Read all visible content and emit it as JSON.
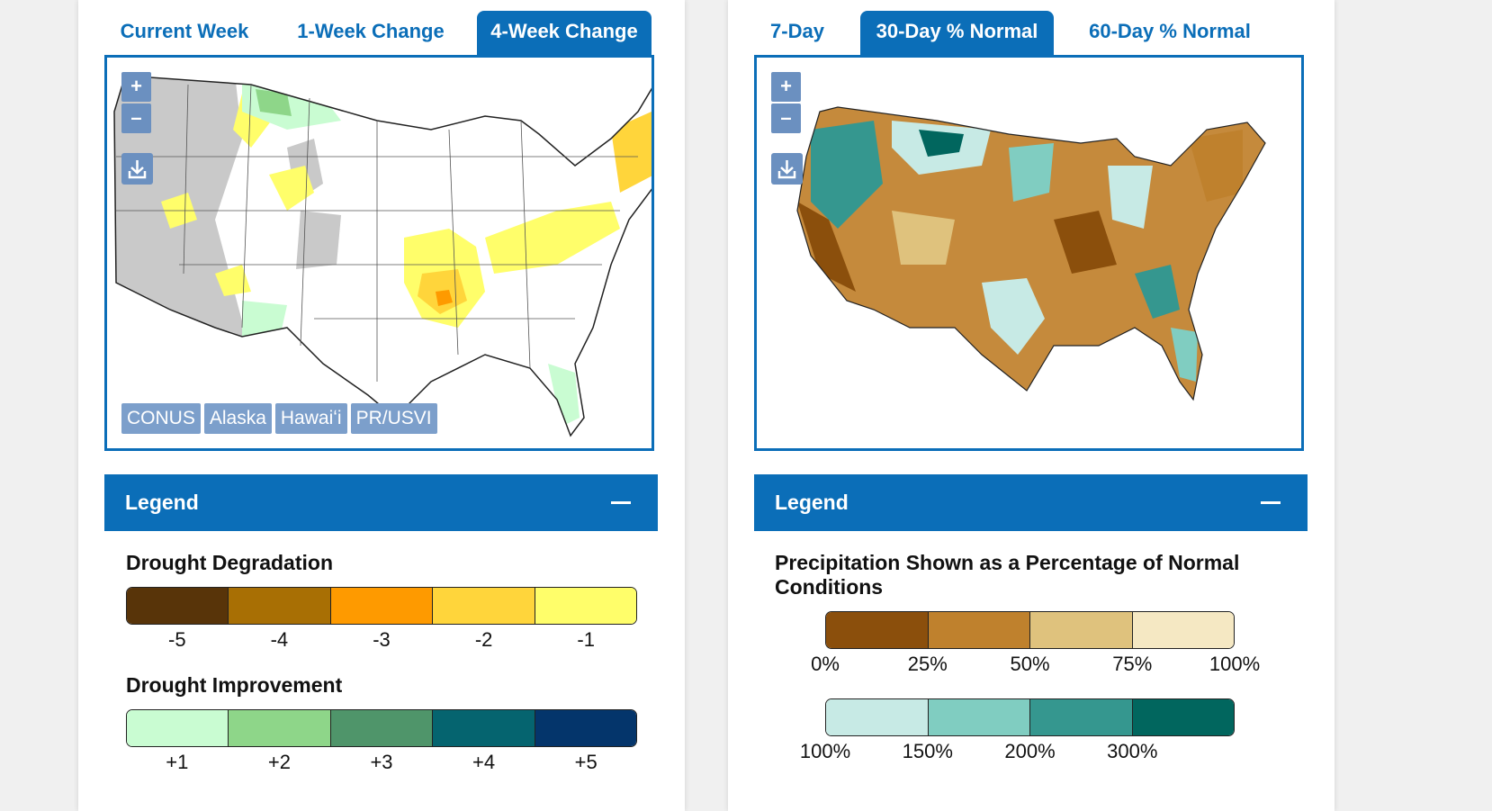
{
  "left_panel": {
    "tabs": [
      {
        "label": "Current Week",
        "active": false
      },
      {
        "label": "1-Week Change",
        "active": false
      },
      {
        "label": "4-Week Change",
        "active": true
      }
    ],
    "zoom_in": "+",
    "zoom_out": "–",
    "regions": [
      "CONUS",
      "Alaska",
      "Hawaiʻi",
      "PR/USVI"
    ],
    "legend": {
      "title": "Legend",
      "degradation": {
        "heading": "Drought Degradation",
        "colors": [
          "#583409",
          "#a86f04",
          "#fe9a00",
          "#ffd53b",
          "#fffe6a"
        ],
        "labels": [
          "-5",
          "-4",
          "-3",
          "-2",
          "-1"
        ]
      },
      "improvement": {
        "heading": "Drought Improvement",
        "colors": [
          "#c9fcd2",
          "#8ed689",
          "#4f956a",
          "#05646f",
          "#04356b"
        ],
        "labels": [
          "+1",
          "+2",
          "+3",
          "+4",
          "+5"
        ]
      }
    }
  },
  "right_panel": {
    "tabs": [
      {
        "label": "7-Day",
        "active": false
      },
      {
        "label": "30-Day % Normal",
        "active": true
      },
      {
        "label": "60-Day % Normal",
        "active": false
      }
    ],
    "zoom_in": "+",
    "zoom_out": "–",
    "legend": {
      "title": "Legend",
      "heading": "Precipitation Shown as a Percentage of Normal Conditions",
      "below_normal": {
        "colors": [
          "#8b4f0c",
          "#bf812d",
          "#dfc27d",
          "#f5e8c3"
        ],
        "labels": [
          "0%",
          "25%",
          "50%",
          "75%",
          "100%"
        ]
      },
      "above_normal": {
        "colors": [
          "#c7eae5",
          "#80cdc1",
          "#35978f",
          "#01665e"
        ],
        "labels": [
          "100%",
          "150%",
          "200%",
          "300%"
        ]
      }
    }
  }
}
